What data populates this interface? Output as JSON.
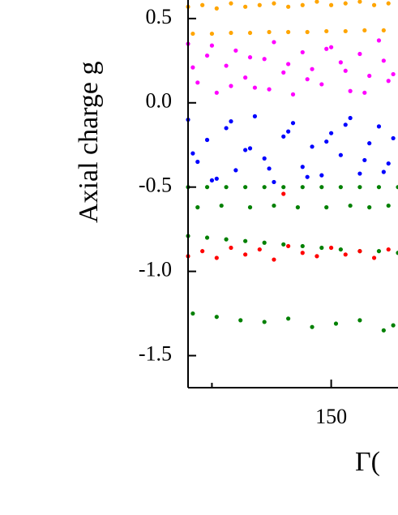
{
  "chart_data": {
    "type": "scatter",
    "ylabel": "Axial charge g",
    "xlabel": "Γ(",
    "xlim": [
      120,
      164
    ],
    "ylim": [
      -1.69,
      0.61
    ],
    "xticks": [
      150
    ],
    "xminorticks": [
      125
    ],
    "yticks": [
      0.5,
      {
        "value": 0,
        "label": "0.0"
      },
      -0.5,
      {
        "value": -1,
        "label": "-1.0"
      },
      -1.5
    ],
    "series": [
      {
        "color": "#ffa500",
        "x": [
          120,
          123,
          126,
          129,
          132,
          135,
          138,
          141,
          144,
          147,
          150,
          153,
          156,
          159,
          162,
          121,
          125,
          129,
          133,
          137,
          141,
          145,
          149,
          153,
          157,
          161
        ],
        "y": [
          0.57,
          0.58,
          0.56,
          0.59,
          0.57,
          0.58,
          0.59,
          0.57,
          0.58,
          0.6,
          0.58,
          0.59,
          0.6,
          0.58,
          0.59,
          0.41,
          0.41,
          0.415,
          0.415,
          0.42,
          0.42,
          0.42,
          0.425,
          0.425,
          0.43,
          0.43
        ]
      },
      {
        "color": "#ff00ff",
        "x": [
          120,
          122,
          124,
          126,
          128,
          130,
          132,
          134,
          136,
          138,
          140,
          142,
          144,
          146,
          148,
          150,
          152,
          154,
          156,
          158,
          160,
          162,
          121,
          125,
          129,
          133,
          137,
          141,
          145,
          149,
          153,
          157,
          161,
          163
        ],
        "y": [
          0.35,
          0.12,
          0.28,
          0.06,
          0.22,
          0.31,
          0.15,
          0.09,
          0.26,
          0.36,
          0.18,
          0.05,
          0.3,
          0.2,
          0.11,
          0.33,
          0.24,
          0.07,
          0.29,
          0.16,
          0.37,
          0.13,
          0.21,
          0.34,
          0.1,
          0.27,
          0.08,
          0.23,
          0.14,
          0.32,
          0.19,
          0.06,
          0.25,
          0.17
        ]
      },
      {
        "color": "#0000ff",
        "x": [
          120,
          122,
          124,
          126,
          128,
          130,
          132,
          134,
          136,
          138,
          140,
          142,
          144,
          146,
          148,
          150,
          152,
          154,
          156,
          158,
          160,
          162,
          121,
          125,
          129,
          133,
          137,
          141,
          145,
          149,
          153,
          157,
          161,
          163
        ],
        "y": [
          -0.1,
          -0.35,
          -0.22,
          -0.45,
          -0.15,
          -0.4,
          -0.28,
          -0.08,
          -0.33,
          -0.47,
          -0.2,
          -0.12,
          -0.38,
          -0.26,
          -0.43,
          -0.18,
          -0.31,
          -0.09,
          -0.42,
          -0.24,
          -0.14,
          -0.36,
          -0.3,
          -0.46,
          -0.11,
          -0.27,
          -0.39,
          -0.17,
          -0.44,
          -0.23,
          -0.13,
          -0.34,
          -0.41,
          -0.21
        ]
      },
      {
        "color": "#008000",
        "x": [
          120,
          124,
          128,
          132,
          136,
          140,
          144,
          148,
          152,
          156,
          160,
          164,
          122,
          127,
          133,
          138,
          143,
          149,
          154,
          158,
          162,
          120,
          124,
          128,
          132,
          136,
          140,
          144,
          148,
          152,
          156,
          160,
          164,
          121,
          126,
          131,
          136,
          141,
          146,
          151,
          156,
          161,
          163
        ],
        "y": [
          -0.5,
          -0.5,
          -0.5,
          -0.5,
          -0.5,
          -0.5,
          -0.5,
          -0.5,
          -0.5,
          -0.5,
          -0.5,
          -0.5,
          -0.62,
          -0.61,
          -0.62,
          -0.61,
          -0.62,
          -0.62,
          -0.61,
          -0.62,
          -0.61,
          -0.79,
          -0.8,
          -0.81,
          -0.82,
          -0.83,
          -0.84,
          -0.85,
          -0.86,
          -0.87,
          -0.88,
          -0.88,
          -0.89,
          -1.25,
          -1.27,
          -1.29,
          -1.3,
          -1.28,
          -1.33,
          -1.31,
          -1.29,
          -1.35,
          -1.32
        ]
      },
      {
        "color": "#ff0000",
        "x": [
          120,
          123,
          126,
          129,
          132,
          135,
          138,
          141,
          144,
          147,
          150,
          153,
          156,
          159,
          162,
          140
        ],
        "y": [
          -0.91,
          -0.88,
          -0.92,
          -0.86,
          -0.9,
          -0.87,
          -0.93,
          -0.85,
          -0.89,
          -0.91,
          -0.86,
          -0.9,
          -0.88,
          -0.92,
          -0.87,
          -0.54
        ]
      }
    ]
  }
}
